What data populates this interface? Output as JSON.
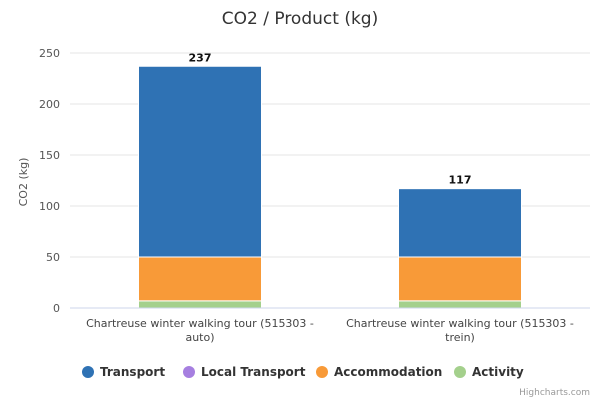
{
  "chart_data": {
    "type": "bar",
    "stacked": true,
    "title": "CO2 / Product (kg)",
    "ylabel": "CO2 (kg)",
    "ylim": [
      0,
      250
    ],
    "yticks": [
      0,
      50,
      100,
      150,
      200,
      250
    ],
    "grid": true,
    "legend_position": "bottom",
    "categories": [
      [
        "Chartreuse winter walking tour (515303 -",
        "auto)"
      ],
      [
        "Chartreuse winter walking tour (515303 -",
        "trein)"
      ]
    ],
    "series": [
      {
        "name": "Activity",
        "color": "#a4d08c",
        "values": [
          7,
          7
        ]
      },
      {
        "name": "Accommodation",
        "color": "#f89a38",
        "values": [
          43,
          43
        ]
      },
      {
        "name": "Local Transport",
        "color": "#a67fe0",
        "values": [
          0,
          0
        ]
      },
      {
        "name": "Transport",
        "color": "#2f72b4",
        "values": [
          187,
          67
        ]
      }
    ],
    "legend_order": [
      "Transport",
      "Local Transport",
      "Accommodation",
      "Activity"
    ],
    "totals": [
      237,
      117
    ],
    "credits": "Highcharts.com"
  }
}
